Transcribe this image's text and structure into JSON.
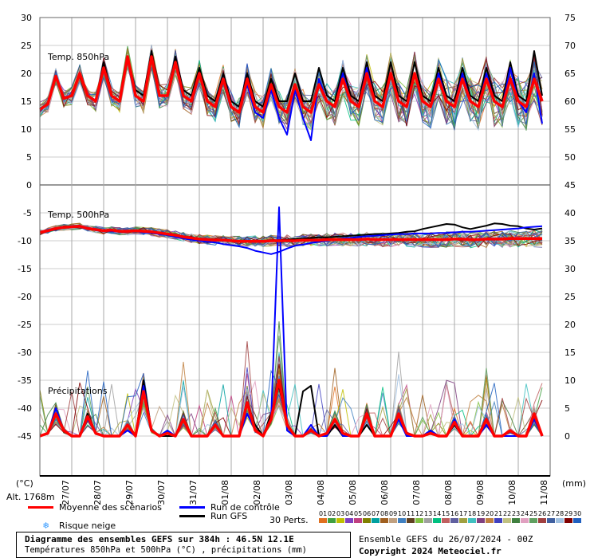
{
  "page": {
    "title_line": "Diagramme des ensembles GEFS sur 384h : 46.5N 12.1E",
    "subtitle_line": "Températures 850hPa et 500hPa (°C) , précipitations (mm)",
    "ensemble_line": "Ensemble GEFS du 26/07/2024 - 00Z",
    "copyright_line": "Copyright 2024 Meteociel.fr",
    "unit_left": "(°C)",
    "unit_right": "(mm)",
    "altitude": "Alt. 1768m",
    "perts_label": "30 Perts."
  },
  "legend": {
    "mean": "Moyenne des scénarios",
    "control": "Run de contrôle",
    "gfs": "Run GFS",
    "snow": "Risque neige",
    "colors": {
      "mean": "#ff0000",
      "control": "#0000ff",
      "gfs": "#000000",
      "snow": "#3399ff"
    }
  },
  "perturbations": {
    "labels": [
      "01",
      "02",
      "03",
      "04",
      "05",
      "06",
      "07",
      "08",
      "09",
      "10",
      "11",
      "12",
      "13",
      "14",
      "15",
      "16",
      "17",
      "18",
      "19",
      "20",
      "21",
      "22",
      "23",
      "24",
      "25",
      "26",
      "27",
      "28",
      "29",
      "30"
    ],
    "colors": [
      "#e07020",
      "#40a040",
      "#c0c000",
      "#8040c0",
      "#c04080",
      "#808000",
      "#00a0a0",
      "#a06020",
      "#c0a080",
      "#4080c0",
      "#604020",
      "#80c040",
      "#a0a0a0",
      "#00c080",
      "#c06060",
      "#6060a0",
      "#a0a040",
      "#40c0c0",
      "#804080",
      "#c08040",
      "#4040c0",
      "#c0c080",
      "#408040",
      "#e0a0c0",
      "#60a060",
      "#a04040",
      "#4060a0",
      "#a0c0e0",
      "#800000",
      "#2060c0"
    ]
  },
  "chart_data": {
    "type": "line",
    "x_labels": [
      "27/07",
      "28/07",
      "29/07",
      "30/07",
      "31/07",
      "01/08",
      "02/08",
      "03/08",
      "04/08",
      "05/08",
      "06/08",
      "07/08",
      "08/08",
      "09/08",
      "10/08",
      "11/08"
    ],
    "left_axis": {
      "label": "(°C)",
      "ticks": [
        30,
        25,
        20,
        15,
        10,
        5,
        0,
        -5,
        -10,
        -15,
        -20,
        -25,
        -30,
        -35,
        -40,
        -45
      ]
    },
    "right_axis": {
      "label": "(mm)",
      "ticks_temp": [
        75,
        70,
        65,
        60,
        55,
        50,
        45
      ],
      "ticks_lower": [
        40,
        35,
        30,
        25,
        20,
        15,
        10,
        5,
        0
      ]
    },
    "panels": {
      "t850": {
        "label": "Temp. 850hPa"
      },
      "t500": {
        "label": "Temp. 500hPa"
      },
      "precip": {
        "label": "Précipitations"
      }
    },
    "grid": true,
    "steps_per_day": 4,
    "series": [
      {
        "name": "Moyenne des scénarios",
        "panel": "t850",
        "y": [
          13.5,
          14.5,
          19.5,
          15.5,
          16,
          20,
          16,
          15,
          21,
          16,
          15,
          23,
          16,
          15,
          23,
          16,
          16,
          22,
          16,
          15,
          20,
          15,
          14,
          19,
          14,
          13,
          19,
          14,
          13,
          18,
          14,
          13,
          18,
          14,
          13,
          18,
          15,
          14,
          19,
          15,
          14,
          20,
          15,
          14,
          20,
          15,
          14,
          20,
          15,
          14,
          19,
          15,
          14,
          19,
          15,
          14,
          19,
          15,
          14,
          19,
          15,
          14,
          19,
          15
        ]
      },
      {
        "name": "Run de contrôle",
        "panel": "t850",
        "y": [
          13.5,
          14.5,
          19.5,
          15.5,
          16,
          20,
          16,
          15,
          21,
          16,
          15,
          23,
          16,
          15,
          23,
          16,
          16,
          22,
          16,
          15,
          20,
          15,
          14,
          19,
          14,
          13,
          18,
          13,
          12,
          17,
          12,
          9,
          17,
          12,
          8,
          19,
          15,
          14,
          20,
          15,
          14,
          21,
          15,
          14,
          20,
          15,
          14,
          20,
          15,
          14,
          20,
          15,
          14,
          20,
          15,
          14,
          20,
          15,
          14,
          21,
          15,
          13,
          20,
          11
        ]
      },
      {
        "name": "Run GFS",
        "panel": "t850",
        "y": [
          13.5,
          14.5,
          19.5,
          15.5,
          16,
          20,
          16,
          15,
          22,
          16,
          15,
          23,
          17,
          16,
          24,
          16,
          16,
          23,
          17,
          16,
          21,
          16,
          15,
          20,
          15,
          14,
          20,
          15,
          14,
          19,
          15,
          15,
          20,
          15,
          15,
          21,
          16,
          15,
          21,
          16,
          15,
          22,
          16,
          15,
          22,
          16,
          15,
          22,
          16,
          15,
          21,
          16,
          15,
          21,
          16,
          15,
          21,
          16,
          15,
          22,
          16,
          15,
          24,
          16
        ]
      },
      {
        "name": "Moyenne des scénarios",
        "panel": "t500",
        "y": [
          -8.5,
          -8.2,
          -7.8,
          -7.6,
          -7.5,
          -7.4,
          -7.8,
          -8.0,
          -8.2,
          -8.1,
          -8.3,
          -8.3,
          -8.2,
          -8.3,
          -8.4,
          -8.6,
          -8.8,
          -9.0,
          -9.3,
          -9.5,
          -9.7,
          -9.8,
          -9.9,
          -9.9,
          -10.0,
          -10.1,
          -10.1,
          -10.1,
          -10.1,
          -10.0,
          -10.0,
          -10.0,
          -10.0,
          -9.9,
          -9.9,
          -9.9,
          -9.8,
          -9.8,
          -9.8,
          -9.8,
          -9.8,
          -9.7,
          -9.8,
          -9.8,
          -9.8,
          -9.8,
          -9.8,
          -9.8,
          -9.8,
          -9.8,
          -9.8,
          -9.8,
          -9.7,
          -9.7,
          -9.8,
          -9.8,
          -9.7,
          -9.7,
          -9.7,
          -9.6,
          -9.6,
          -9.6,
          -9.6,
          -9.6
        ]
      },
      {
        "name": "Run de contrôle",
        "panel": "t500",
        "y": [
          -8.5,
          -8.2,
          -7.8,
          -7.6,
          -7.5,
          -7.4,
          -7.9,
          -8.1,
          -8.2,
          -8.3,
          -8.4,
          -8.4,
          -8.3,
          -8.5,
          -8.6,
          -8.8,
          -9.0,
          -9.3,
          -9.6,
          -9.8,
          -10.0,
          -10.2,
          -10.3,
          -10.6,
          -10.8,
          -11.0,
          -11.3,
          -11.8,
          -12.1,
          -12.4,
          -12.0,
          -11.4,
          -10.9,
          -10.7,
          -10.4,
          -10.2,
          -10.0,
          -9.8,
          -9.6,
          -9.5,
          -9.3,
          -9.2,
          -9.1,
          -9.0,
          -8.9,
          -8.8,
          -8.8,
          -8.7,
          -8.7,
          -8.7,
          -8.6,
          -8.6,
          -8.5,
          -8.4,
          -8.4,
          -8.3,
          -8.2,
          -8.1,
          -8.0,
          -7.9,
          -7.8,
          -7.6,
          -7.5,
          -7.4
        ]
      },
      {
        "name": "Run GFS",
        "panel": "t500",
        "y": [
          -8.5,
          -8.2,
          -7.8,
          -7.6,
          -7.5,
          -7.4,
          -7.9,
          -8.0,
          -8.1,
          -8.2,
          -8.3,
          -8.3,
          -8.2,
          -8.4,
          -8.5,
          -8.6,
          -8.8,
          -9.0,
          -9.2,
          -9.4,
          -9.6,
          -9.7,
          -9.8,
          -9.9,
          -10.0,
          -10.0,
          -10.0,
          -10.0,
          -10.0,
          -9.9,
          -9.9,
          -9.8,
          -9.7,
          -9.6,
          -9.5,
          -9.4,
          -9.4,
          -9.3,
          -9.2,
          -9.1,
          -9.0,
          -8.9,
          -8.8,
          -8.8,
          -8.7,
          -8.6,
          -8.4,
          -8.3,
          -7.9,
          -7.6,
          -7.3,
          -7.0,
          -7.1,
          -7.6,
          -7.9,
          -7.6,
          -7.3,
          -6.9,
          -7.0,
          -7.3,
          -7.4,
          -7.8,
          -8.0,
          -7.8
        ]
      },
      {
        "name": "Moyenne des scénarios",
        "panel": "precip",
        "y": [
          0,
          0.5,
          4,
          1,
          0,
          0,
          3.5,
          0.5,
          0,
          0,
          0,
          2,
          0,
          8,
          1,
          0,
          0.5,
          0,
          3,
          0,
          0,
          0,
          2,
          0,
          0,
          0,
          6,
          1,
          0,
          3,
          10,
          2,
          0,
          0,
          1,
          0,
          0.5,
          3,
          0.5,
          0,
          0,
          4,
          0,
          0,
          0,
          4,
          0.5,
          0,
          0,
          0.5,
          0,
          0,
          2.5,
          0,
          0,
          0,
          3,
          0,
          0,
          1,
          0,
          0,
          4,
          0
        ]
      },
      {
        "name": "Run de contrôle",
        "panel": "precip",
        "y": [
          0,
          0.5,
          5,
          1,
          0,
          0,
          3,
          0.5,
          0,
          0,
          0,
          1,
          0,
          9,
          1,
          0,
          1,
          0,
          3,
          0,
          0,
          0,
          2,
          0,
          0,
          0,
          4,
          1,
          0,
          3,
          41,
          1,
          0,
          0,
          2,
          0,
          0,
          3,
          0,
          0,
          0,
          4,
          0,
          0,
          0,
          3,
          0,
          0,
          0,
          1,
          0,
          0,
          3,
          0,
          0,
          0,
          2,
          0,
          0,
          0,
          0,
          0,
          3,
          0
        ]
      },
      {
        "name": "Run GFS",
        "panel": "precip",
        "y": [
          0,
          0.5,
          4,
          1,
          0,
          0,
          4,
          0.5,
          0,
          0,
          0,
          2,
          0,
          10,
          1,
          0,
          0,
          0,
          3,
          0,
          0,
          0,
          2,
          0,
          0,
          0,
          6,
          2,
          0,
          4,
          9,
          2,
          0,
          8,
          9,
          0,
          0,
          2,
          0,
          0,
          0,
          2,
          0,
          0,
          0,
          4,
          0,
          0,
          0,
          1,
          0,
          0,
          2,
          0,
          0,
          0,
          3,
          0,
          0,
          1,
          0,
          0,
          4,
          0
        ]
      }
    ]
  }
}
